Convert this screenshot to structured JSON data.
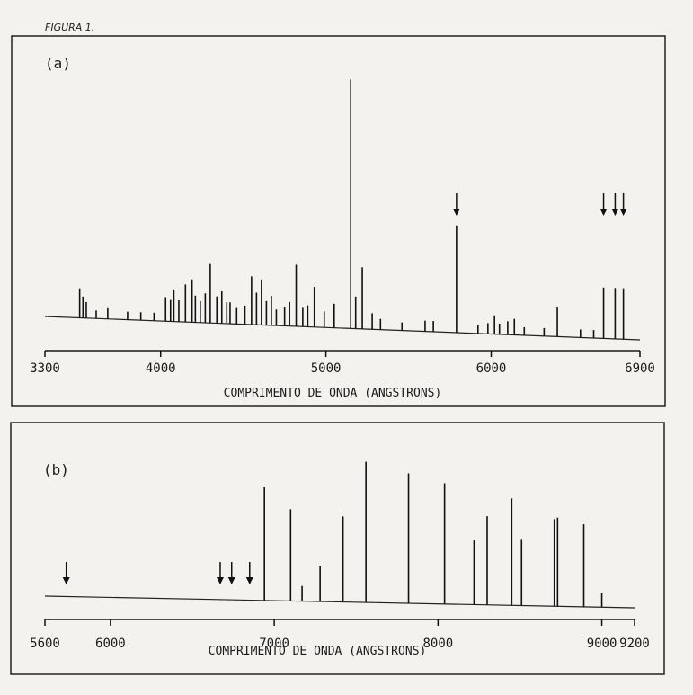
{
  "figure_title": "FIGURA 1.",
  "chart_data": [
    {
      "type": "line",
      "panel_label": "(a)",
      "xlabel": "COMPRIMENTO DE ONDA (ANGSTRONS)",
      "ylabel": "",
      "xlim": [
        3300,
        6900
      ],
      "ylim": [
        0,
        100
      ],
      "tick_values": [
        3300,
        4000,
        5000,
        6000,
        6900
      ],
      "tick_labels": [
        "3300",
        "4000",
        "5000",
        "6000",
        "6900"
      ],
      "axis_color": "#1a1a1a",
      "lines": [
        {
          "x": 3510,
          "y": 11
        },
        {
          "x": 3530,
          "y": 8
        },
        {
          "x": 3550,
          "y": 6
        },
        {
          "x": 3610,
          "y": 3
        },
        {
          "x": 3680,
          "y": 4
        },
        {
          "x": 3800,
          "y": 3
        },
        {
          "x": 3880,
          "y": 3
        },
        {
          "x": 3960,
          "y": 3
        },
        {
          "x": 4030,
          "y": 9
        },
        {
          "x": 4060,
          "y": 8
        },
        {
          "x": 4080,
          "y": 12
        },
        {
          "x": 4110,
          "y": 8
        },
        {
          "x": 4150,
          "y": 14
        },
        {
          "x": 4190,
          "y": 16
        },
        {
          "x": 4210,
          "y": 10
        },
        {
          "x": 4240,
          "y": 8
        },
        {
          "x": 4270,
          "y": 11
        },
        {
          "x": 4300,
          "y": 22
        },
        {
          "x": 4340,
          "y": 10
        },
        {
          "x": 4370,
          "y": 12
        },
        {
          "x": 4400,
          "y": 8
        },
        {
          "x": 4420,
          "y": 8
        },
        {
          "x": 4460,
          "y": 6
        },
        {
          "x": 4510,
          "y": 7
        },
        {
          "x": 4550,
          "y": 18
        },
        {
          "x": 4580,
          "y": 12
        },
        {
          "x": 4610,
          "y": 17
        },
        {
          "x": 4640,
          "y": 9
        },
        {
          "x": 4670,
          "y": 11
        },
        {
          "x": 4700,
          "y": 6
        },
        {
          "x": 4750,
          "y": 7
        },
        {
          "x": 4780,
          "y": 9
        },
        {
          "x": 4820,
          "y": 23
        },
        {
          "x": 4860,
          "y": 7
        },
        {
          "x": 4890,
          "y": 8
        },
        {
          "x": 4930,
          "y": 15
        },
        {
          "x": 4990,
          "y": 6
        },
        {
          "x": 5050,
          "y": 9
        },
        {
          "x": 5150,
          "y": 93
        },
        {
          "x": 5180,
          "y": 12
        },
        {
          "x": 5220,
          "y": 23
        },
        {
          "x": 5280,
          "y": 6
        },
        {
          "x": 5330,
          "y": 4
        },
        {
          "x": 5460,
          "y": 3
        },
        {
          "x": 5600,
          "y": 4
        },
        {
          "x": 5650,
          "y": 4
        },
        {
          "x": 5790,
          "y": 40
        },
        {
          "x": 5920,
          "y": 3
        },
        {
          "x": 5980,
          "y": 4
        },
        {
          "x": 6020,
          "y": 7
        },
        {
          "x": 6050,
          "y": 4
        },
        {
          "x": 6100,
          "y": 5
        },
        {
          "x": 6140,
          "y": 6
        },
        {
          "x": 6200,
          "y": 3
        },
        {
          "x": 6320,
          "y": 3
        },
        {
          "x": 6400,
          "y": 11
        },
        {
          "x": 6540,
          "y": 3
        },
        {
          "x": 6620,
          "y": 3
        },
        {
          "x": 6680,
          "y": 19
        },
        {
          "x": 6750,
          "y": 19
        },
        {
          "x": 6800,
          "y": 19
        }
      ],
      "arrows_at": [
        5790,
        6680,
        6750,
        6800
      ]
    },
    {
      "type": "line",
      "panel_label": "(b)",
      "xlabel": "COMPRIMENTO DE ONDA (ANGSTRONS)",
      "ylabel": "",
      "xlim": [
        5600,
        9200
      ],
      "ylim": [
        0,
        100
      ],
      "tick_values": [
        5600,
        6000,
        7000,
        8000,
        9000,
        9200
      ],
      "tick_labels": [
        "5600",
        "6000",
        "7000",
        "8000",
        "9000",
        "9200"
      ],
      "axis_color": "#1a1a1a",
      "lines": [
        {
          "x": 6940,
          "y": 74
        },
        {
          "x": 7100,
          "y": 60
        },
        {
          "x": 7170,
          "y": 10
        },
        {
          "x": 7280,
          "y": 23
        },
        {
          "x": 7420,
          "y": 56
        },
        {
          "x": 7560,
          "y": 92
        },
        {
          "x": 7820,
          "y": 85
        },
        {
          "x": 8040,
          "y": 79
        },
        {
          "x": 8220,
          "y": 42
        },
        {
          "x": 8300,
          "y": 58
        },
        {
          "x": 8450,
          "y": 70
        },
        {
          "x": 8510,
          "y": 43
        },
        {
          "x": 8710,
          "y": 57
        },
        {
          "x": 8730,
          "y": 58
        },
        {
          "x": 8890,
          "y": 54
        },
        {
          "x": 9000,
          "y": 9
        }
      ],
      "arrows_at": [
        5730,
        6670,
        6740,
        6850
      ]
    }
  ]
}
